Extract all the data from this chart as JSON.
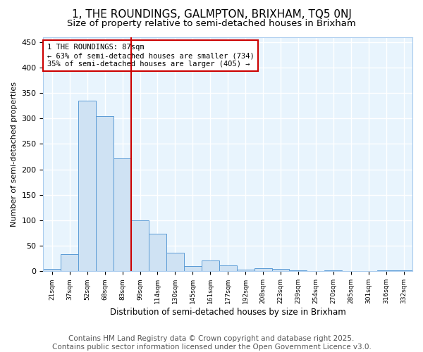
{
  "title": "1, THE ROUNDINGS, GALMPTON, BRIXHAM, TQ5 0NJ",
  "subtitle": "Size of property relative to semi-detached houses in Brixham",
  "xlabel": "Distribution of semi-detached houses by size in Brixham",
  "ylabel": "Number of semi-detached properties",
  "bin_labels": [
    "21sqm",
    "37sqm",
    "52sqm",
    "68sqm",
    "83sqm",
    "99sqm",
    "114sqm",
    "130sqm",
    "145sqm",
    "161sqm",
    "177sqm",
    "192sqm",
    "208sqm",
    "223sqm",
    "239sqm",
    "254sqm",
    "270sqm",
    "285sqm",
    "301sqm",
    "316sqm",
    "332sqm"
  ],
  "bar_heights": [
    5,
    33,
    335,
    305,
    222,
    100,
    74,
    37,
    10,
    21,
    11,
    3,
    6,
    5,
    2,
    0,
    2,
    1,
    1,
    2,
    2
  ],
  "bar_color": "#cfe2f3",
  "bar_edge_color": "#5b9bd5",
  "property_line_x": 4.5,
  "annotation_text": "1 THE ROUNDINGS: 87sqm\n← 63% of semi-detached houses are smaller (734)\n35% of semi-detached houses are larger (405) →",
  "annotation_box_color": "#ffffff",
  "annotation_box_edge": "#cc0000",
  "vline_color": "#cc0000",
  "ylim": [
    0,
    460
  ],
  "yticks": [
    0,
    50,
    100,
    150,
    200,
    250,
    300,
    350,
    400,
    450
  ],
  "footer_line1": "Contains HM Land Registry data © Crown copyright and database right 2025.",
  "footer_line2": "Contains public sector information licensed under the Open Government Licence v3.0.",
  "bg_color": "#ffffff",
  "plot_bg_color": "#e8f4fd",
  "title_fontsize": 11,
  "subtitle_fontsize": 9.5,
  "axis_fontsize": 8,
  "footer_fontsize": 7.5
}
